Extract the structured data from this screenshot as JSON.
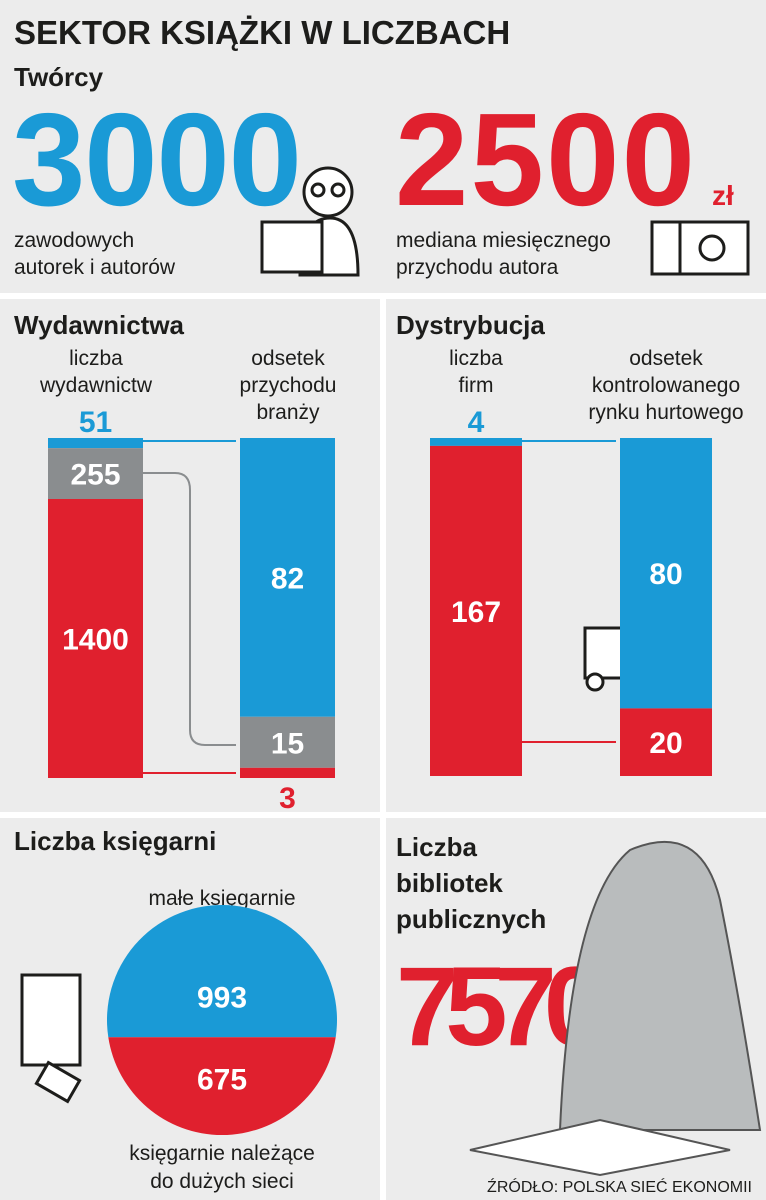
{
  "title": "SEKTOR KSIĄŻKI W LICZBACH",
  "creators": {
    "heading": "Twórcy",
    "authors": {
      "value": 3000,
      "label": [
        "zawodowych",
        "autorek i autorów"
      ]
    },
    "income": {
      "value": 2500,
      "unit": "zł",
      "label": [
        "mediana miesięcznego",
        "przychodu autora"
      ]
    }
  },
  "publishers": {
    "heading": "Wydawnictwa",
    "left_label": [
      "liczba",
      "wydawnictw"
    ],
    "right_label": [
      "odsetek",
      "przychodu",
      "branży"
    ],
    "counts": [
      51,
      255,
      1400
    ],
    "shares": [
      82,
      15,
      3
    ],
    "colors": [
      "#1a9ad6",
      "#8a8d8f",
      "#e0202e"
    ]
  },
  "distribution": {
    "heading": "Dystrybucja",
    "left_label": [
      "liczba",
      "firm"
    ],
    "right_label": [
      "odsetek",
      "kontrolowanego",
      "rynku hurtowego"
    ],
    "counts": [
      4,
      167
    ],
    "shares": [
      80,
      20
    ],
    "colors": [
      "#1a9ad6",
      "#e0202e"
    ]
  },
  "bookstores": {
    "heading": "Liczba księgarni",
    "small_label": "małe księgarnie",
    "small": 993,
    "chain": 675,
    "chain_label": [
      "księgarnie należące",
      "do dużych sieci"
    ]
  },
  "libraries": {
    "heading": [
      "Liczba",
      "bibliotek",
      "publicznych"
    ],
    "value": 7570
  },
  "source": "ŹRÓDŁO: POLSKA SIEĆ EKONOMII"
}
